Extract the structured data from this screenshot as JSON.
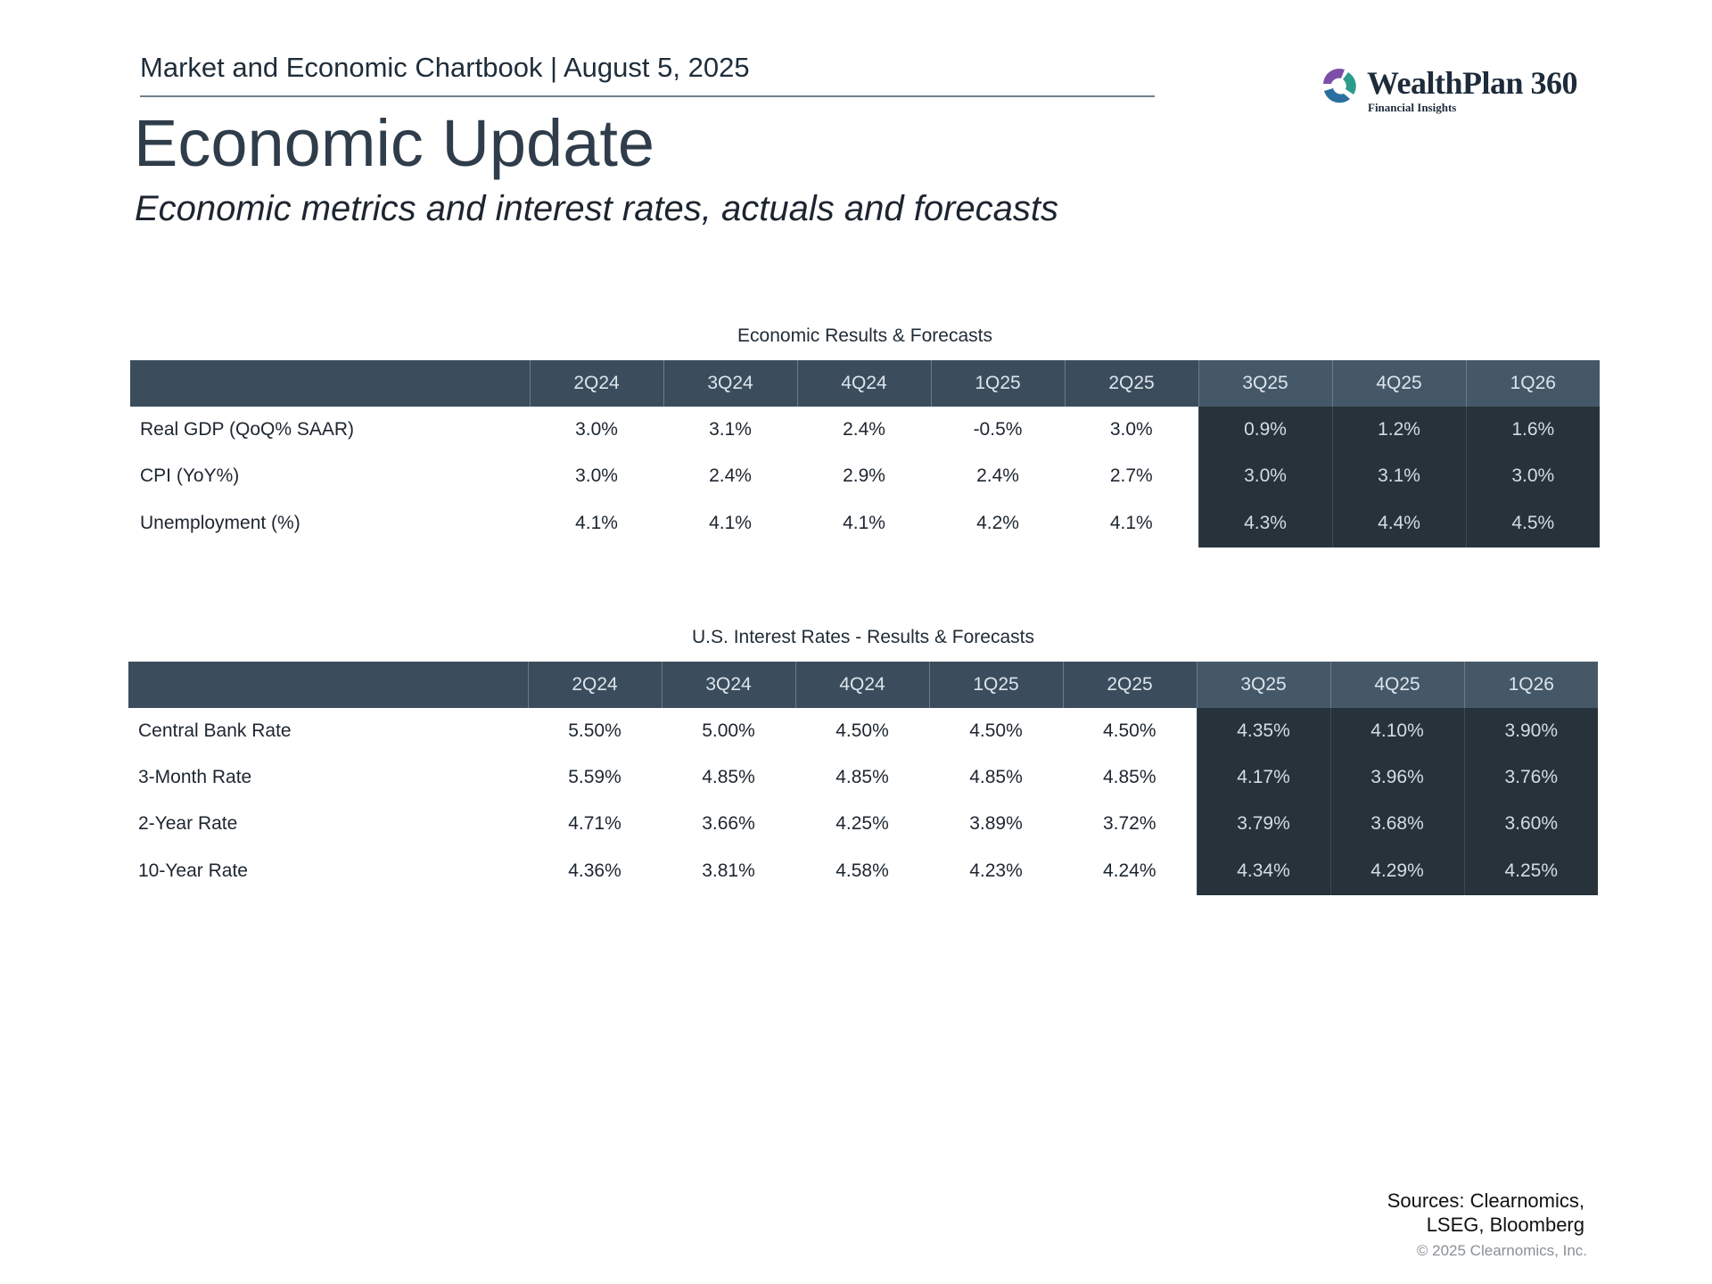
{
  "header": {
    "chartbook": "Market and Economic Chartbook | August 5, 2025"
  },
  "logo": {
    "name": "WealthPlan 360",
    "tagline": "Financial Insights",
    "colors": [
      "#7b4fa8",
      "#2e9c8a",
      "#2a6fa0"
    ]
  },
  "title": "Economic Update",
  "subtitle": "Economic metrics and interest rates, actuals and forecasts",
  "colors": {
    "header_bg": "#3b4d5d",
    "forecast_bg": "#27323a"
  },
  "economic": {
    "caption": "Economic Results & Forecasts",
    "columns": [
      "",
      "2Q24",
      "3Q24",
      "4Q24",
      "1Q25",
      "2Q25",
      "3Q25",
      "4Q25",
      "1Q26"
    ],
    "rows": [
      {
        "label": "Real GDP (QoQ% SAAR)",
        "values": [
          "3.0%",
          "3.1%",
          "2.4%",
          "-0.5%",
          "3.0%",
          "0.9%",
          "1.2%",
          "1.6%"
        ]
      },
      {
        "label": "CPI (YoY%)",
        "values": [
          "3.0%",
          "2.4%",
          "2.9%",
          "2.4%",
          "2.7%",
          "3.0%",
          "3.1%",
          "3.0%"
        ]
      },
      {
        "label": "Unemployment (%)",
        "values": [
          "4.1%",
          "4.1%",
          "4.1%",
          "4.2%",
          "4.1%",
          "4.3%",
          "4.4%",
          "4.5%"
        ]
      }
    ]
  },
  "rates": {
    "caption": "U.S. Interest Rates - Results & Forecasts",
    "columns": [
      "",
      "2Q24",
      "3Q24",
      "4Q24",
      "1Q25",
      "2Q25",
      "3Q25",
      "4Q25",
      "1Q26"
    ],
    "rows": [
      {
        "label": "Central Bank Rate",
        "values": [
          "5.50%",
          "5.00%",
          "4.50%",
          "4.50%",
          "4.50%",
          "4.35%",
          "4.10%",
          "3.90%"
        ]
      },
      {
        "label": "3-Month Rate",
        "values": [
          "5.59%",
          "4.85%",
          "4.85%",
          "4.85%",
          "4.85%",
          "4.17%",
          "3.96%",
          "3.76%"
        ]
      },
      {
        "label": "2-Year Rate",
        "values": [
          "4.71%",
          "3.66%",
          "4.25%",
          "3.89%",
          "3.72%",
          "3.79%",
          "3.68%",
          "3.60%"
        ]
      },
      {
        "label": "10-Year Rate",
        "values": [
          "4.36%",
          "3.81%",
          "4.58%",
          "4.23%",
          "4.24%",
          "4.34%",
          "4.29%",
          "4.25%"
        ]
      }
    ]
  },
  "footer": {
    "sources_line1": "Sources: Clearnomics,",
    "sources_line2": "LSEG, Bloomberg",
    "copyright": "© 2025 Clearnomics, Inc."
  }
}
